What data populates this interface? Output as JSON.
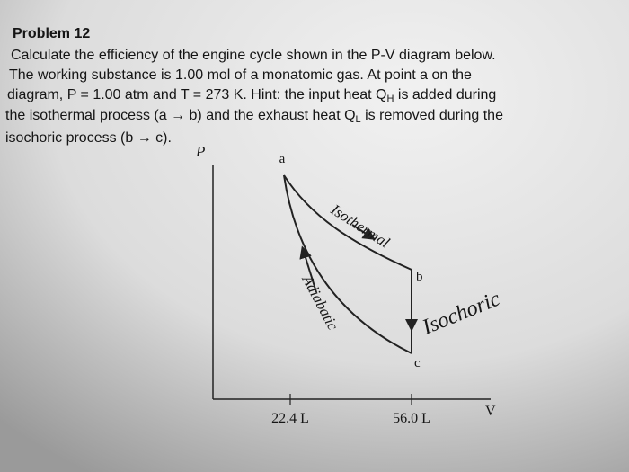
{
  "problem": {
    "title": "Problem 12",
    "lines": [
      [
        "Calculate the efficiency of the engine cycle shown in the P-V diagram below."
      ],
      [
        "The working substance is 1.00 mol of a monatomic gas. At point a on the"
      ],
      [
        "diagram, P = 1.00 atm and T = 273 K. Hint: the input heat Q",
        "H",
        " is added during"
      ],
      [
        "the isothermal process (a → b) and the exhaust heat Q",
        "L",
        " is removed during the"
      ],
      [
        "isochoric process (b → c)."
      ]
    ]
  },
  "diagram": {
    "axis_labels": {
      "y": "P",
      "x": "V"
    },
    "ticks": [
      "22.4 L",
      "56.0 L"
    ],
    "points": [
      "a",
      "b",
      "c"
    ],
    "process_labels": [
      "Isothermal",
      "Adiabatic",
      "Isochoric"
    ]
  }
}
